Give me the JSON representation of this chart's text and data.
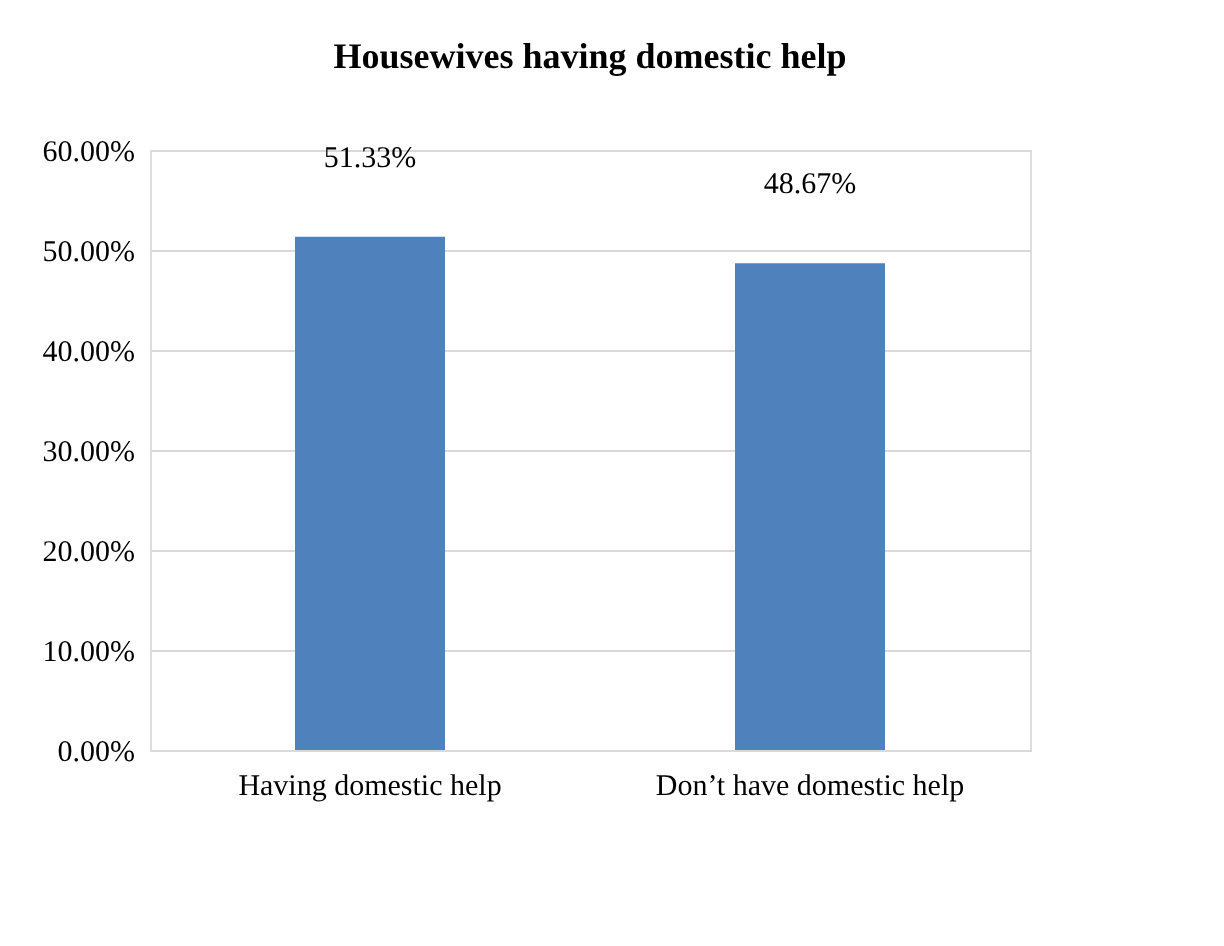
{
  "chart_data": {
    "type": "bar",
    "title": "Housewives having domestic help",
    "categories": [
      "Having domestic help",
      "Don’t have domestic help"
    ],
    "values": [
      51.33,
      48.67
    ],
    "color": "#4f81bd",
    "value_labels": [
      "51.33%",
      "48.67%"
    ],
    "ylim": [
      0,
      60
    ],
    "yticks": [
      {
        "value": 0,
        "label": "0.00%"
      },
      {
        "value": 10,
        "label": "10.00%"
      },
      {
        "value": 20,
        "label": "20.00%"
      },
      {
        "value": 30,
        "label": "30.00%"
      },
      {
        "value": 40,
        "label": "40.00%"
      },
      {
        "value": 50,
        "label": "50.00%"
      },
      {
        "value": 60,
        "label": "60.00%"
      }
    ],
    "grid": "y"
  }
}
